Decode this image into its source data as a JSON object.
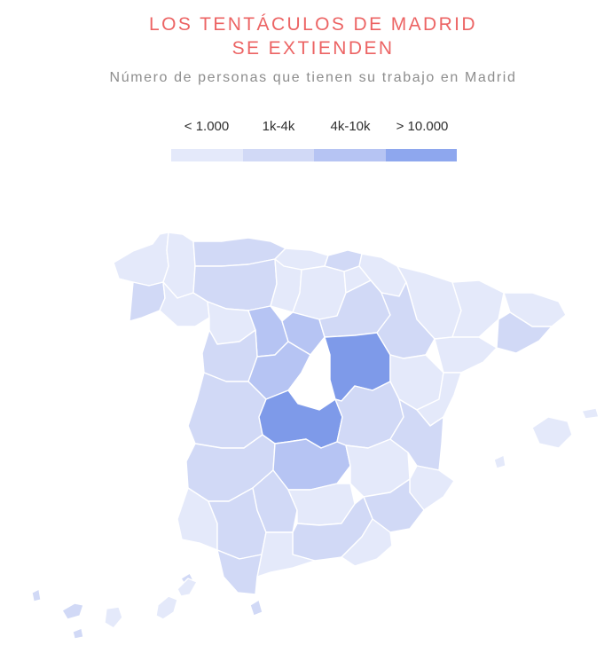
{
  "title_line1": "LOS TENTÁCULOS DE MADRID",
  "title_line2": "SE EXTIENDEN",
  "subtitle": "Número de personas que tienen su trabajo en Madrid",
  "legend": [
    {
      "label": "< 1.000",
      "color": "#e4e9fa"
    },
    {
      "label": "1k-4k",
      "color": "#d1d9f6"
    },
    {
      "label": "4k-10k",
      "color": "#b6c4f3"
    },
    {
      "label": "> 10.000",
      "color": "#8ea7ee"
    }
  ],
  "colors": {
    "c1": "#e4e9fa",
    "c2": "#d1d9f6",
    "c3": "#b6c4f3",
    "c4": "#8ea7ee",
    "c5": "#7e9ae9",
    "madrid": "#ffffff",
    "title": "#ec6464"
  }
}
